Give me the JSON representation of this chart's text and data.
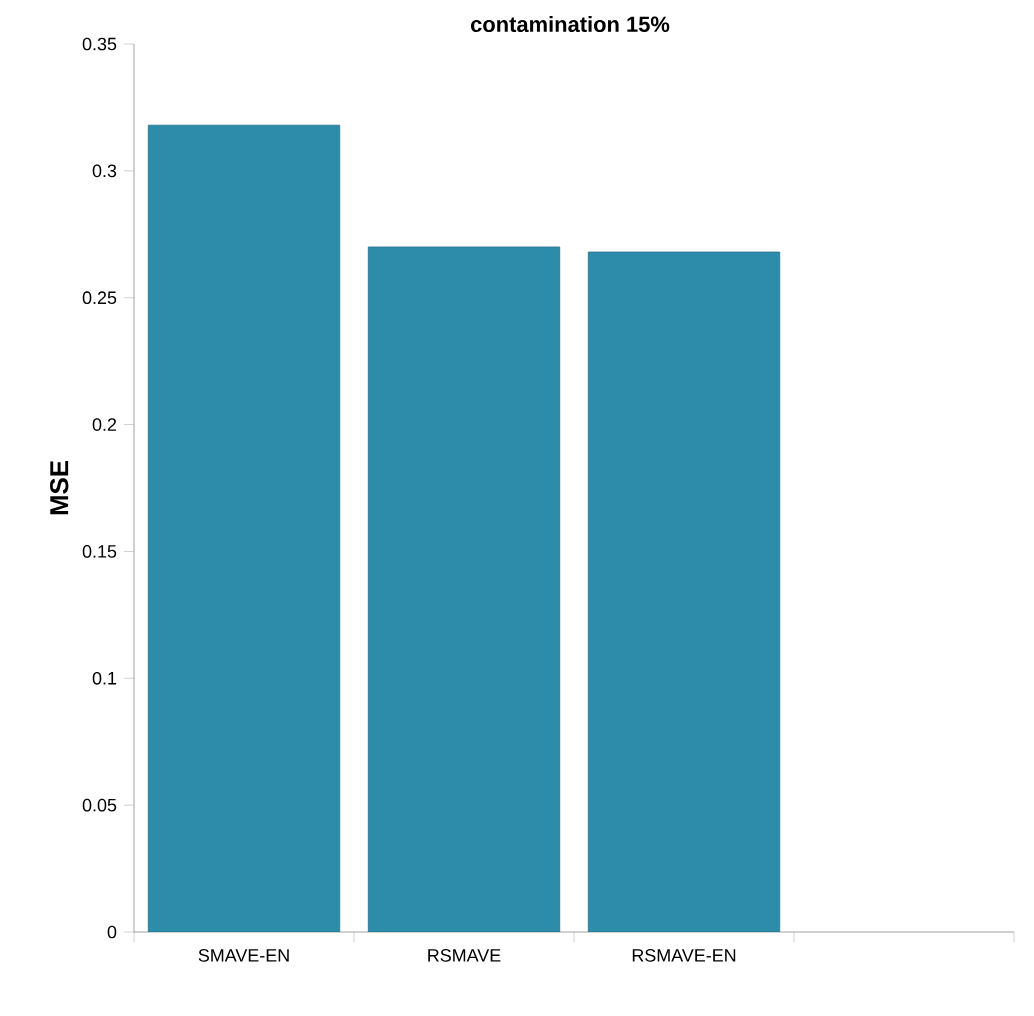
{
  "chart_data": {
    "type": "bar",
    "title": "contamination 15%",
    "ylabel": "MSE",
    "categories": [
      "SMAVE-EN",
      "RSMAVE",
      "RSMAVE-EN",
      null
    ],
    "values": [
      0.318,
      0.27,
      0.268,
      null
    ],
    "color": "#2e8cab",
    "ylim": [
      0,
      0.35
    ],
    "yticks": [
      0,
      0.05,
      0.1,
      0.15,
      0.2,
      0.25,
      0.3,
      0.35
    ],
    "grid": false
  }
}
